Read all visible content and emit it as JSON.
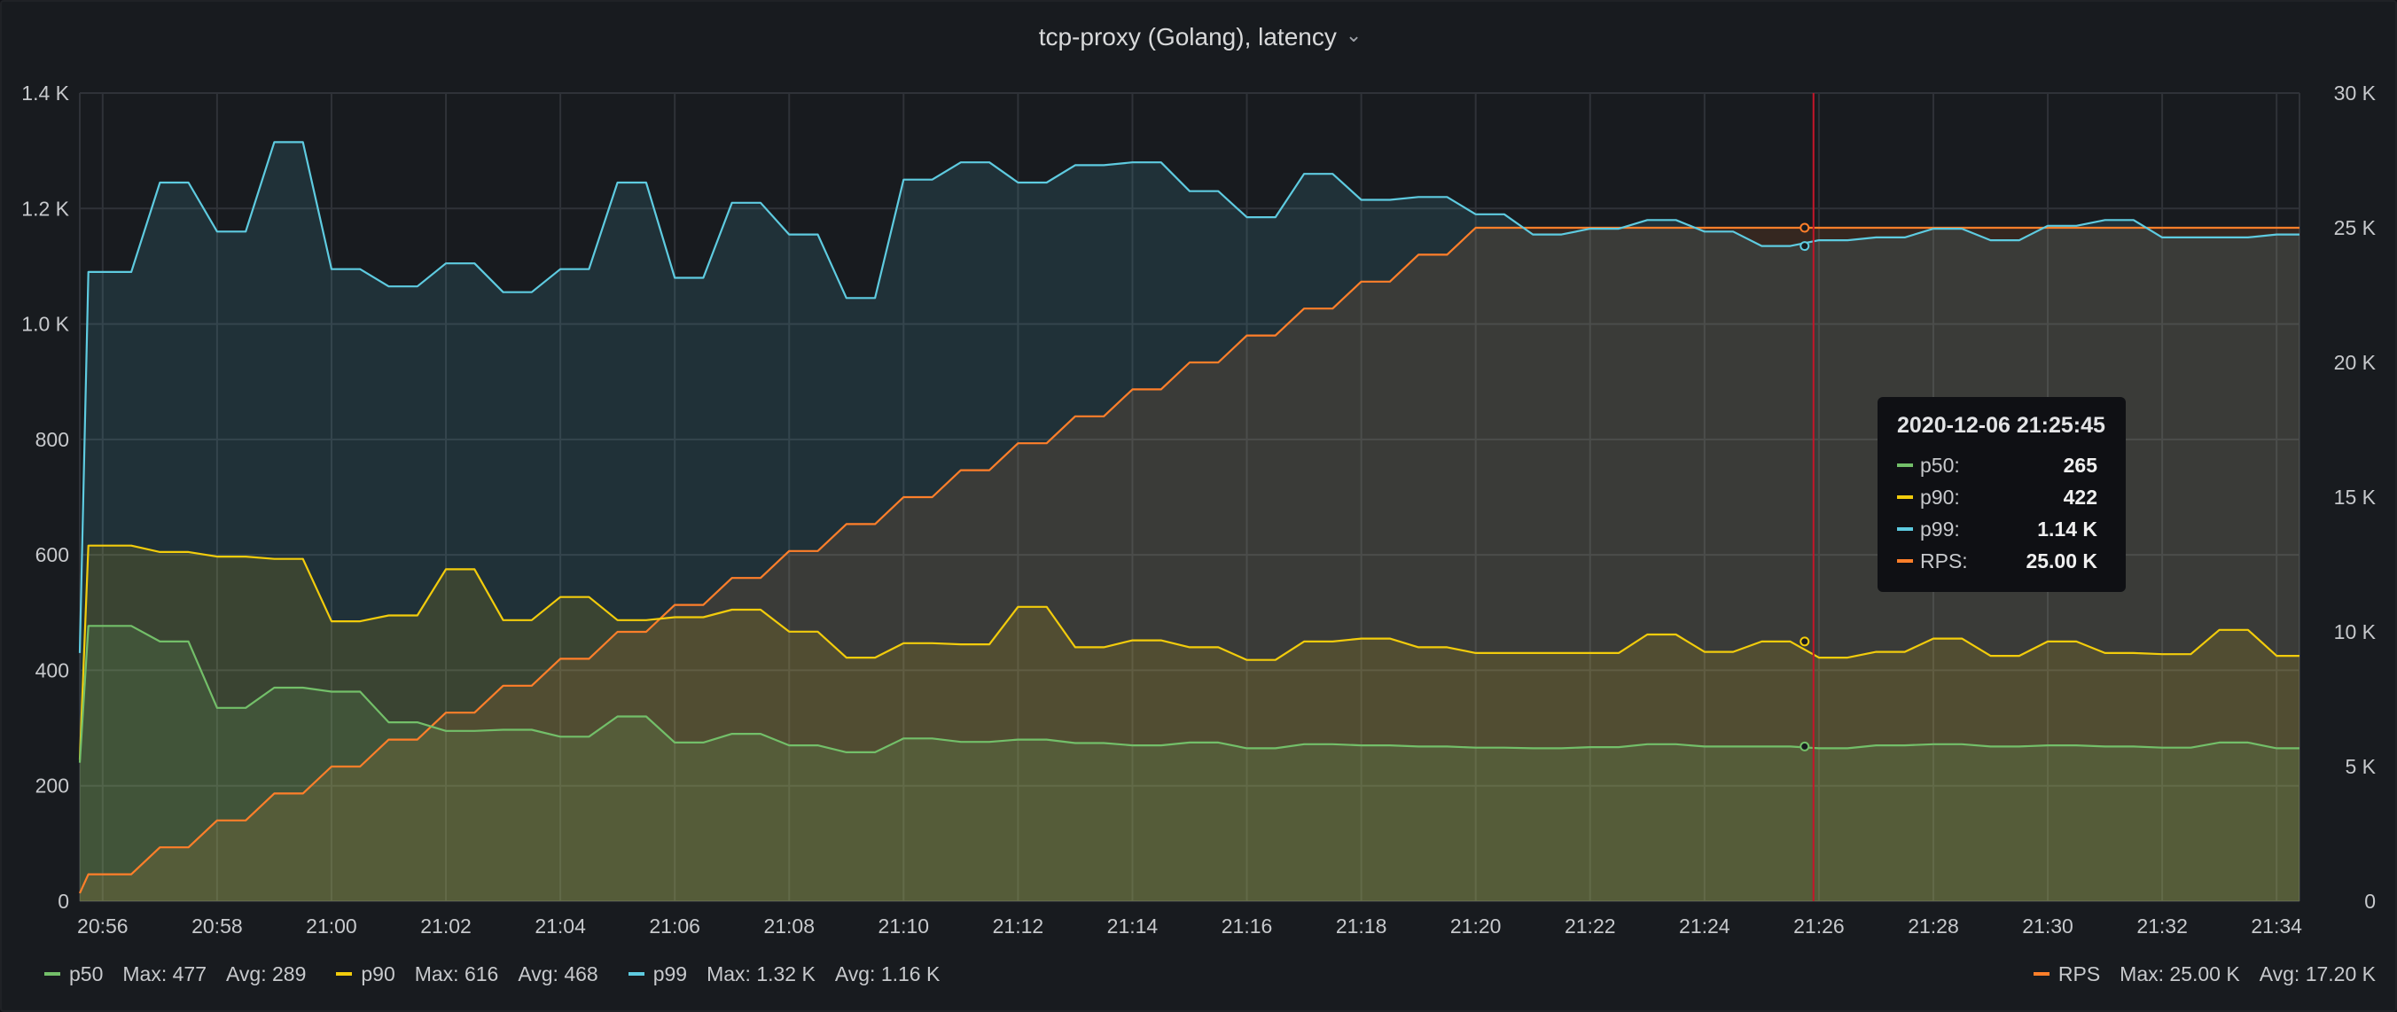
{
  "panel": {
    "title": "tcp-proxy (Golang), latency",
    "icons": {
      "title_dropdown": "chevron-down-icon"
    }
  },
  "colors": {
    "p50": "#73bf69",
    "p90": "#f2cc0c",
    "p99": "#5ecbe0",
    "rps": "#ff7f2a",
    "crosshair": "#c4162a",
    "grid": "#2f3238"
  },
  "tooltip": {
    "time": "2020-12-06 21:25:45",
    "rows": [
      {
        "name": "p50:",
        "value": "265"
      },
      {
        "name": "p90:",
        "value": "422"
      },
      {
        "name": "p99:",
        "value": "1.14 K"
      },
      {
        "name": "RPS:",
        "value": "25.00 K"
      }
    ]
  },
  "legend": {
    "left": [
      {
        "name": "p50",
        "max": "Max: 477",
        "avg": "Avg: 289"
      },
      {
        "name": "p90",
        "max": "Max: 616",
        "avg": "Avg: 468"
      },
      {
        "name": "p99",
        "max": "Max: 1.32 K",
        "avg": "Avg: 1.16 K"
      }
    ],
    "right": [
      {
        "name": "RPS",
        "max": "Max: 25.00 K",
        "avg": "Avg: 17.20 K"
      }
    ]
  },
  "chart_data": {
    "type": "area",
    "title": "tcp-proxy (Golang), latency",
    "x_range_minutes": [
      55.6,
      94.4
    ],
    "hover_x": 85.75,
    "x_tick_labels": [
      "20:56",
      "20:58",
      "21:00",
      "21:02",
      "21:04",
      "21:06",
      "21:08",
      "21:10",
      "21:12",
      "21:14",
      "21:16",
      "21:18",
      "21:20",
      "21:22",
      "21:24",
      "21:26",
      "21:28",
      "21:30",
      "21:32",
      "21:34"
    ],
    "x_tick_minutes": [
      56,
      58,
      60,
      62,
      64,
      66,
      68,
      70,
      72,
      74,
      76,
      78,
      80,
      82,
      84,
      86,
      88,
      90,
      92,
      94
    ],
    "y_left": {
      "min": 0,
      "max": 1400,
      "ticks": [
        0,
        200,
        400,
        600,
        800,
        1000,
        1200,
        1400
      ],
      "tick_labels": [
        "0",
        "200",
        "400",
        "600",
        "800",
        "1.0 K",
        "1.2 K",
        "1.4 K"
      ]
    },
    "y_right": {
      "min": 0,
      "max": 30000,
      "ticks": [
        0,
        5000,
        10000,
        15000,
        20000,
        25000,
        30000
      ],
      "tick_labels": [
        "0",
        "5 K",
        "10 K",
        "15 K",
        "20 K",
        "25 K",
        "30 K"
      ]
    },
    "grid": true,
    "legend_position": "bottom",
    "series": [
      {
        "name": "p50",
        "axis": "left",
        "fill": true,
        "x": [
          55.6,
          55.75,
          56.5,
          57.0,
          57.5,
          58.0,
          58.5,
          59.0,
          59.5,
          60.0,
          60.5,
          61.0,
          61.5,
          62.0,
          62.5,
          63.0,
          63.5,
          64.0,
          64.5,
          65.0,
          65.5,
          66.0,
          66.5,
          67.0,
          67.5,
          68.0,
          68.5,
          69.0,
          69.5,
          70.0,
          70.5,
          71.0,
          71.5,
          72.0,
          72.5,
          73.0,
          73.5,
          74.0,
          74.5,
          75.0,
          75.5,
          76.0,
          76.5,
          77.0,
          77.5,
          78.0,
          78.5,
          79.0,
          79.5,
          80.0,
          80.5,
          81.0,
          81.5,
          82.0,
          82.5,
          83.0,
          83.5,
          84.0,
          84.5,
          85.0,
          85.5,
          86.0,
          86.5,
          87.0,
          87.5,
          88.0,
          88.5,
          89.0,
          89.5,
          90.0,
          90.5,
          91.0,
          91.5,
          92.0,
          92.5,
          93.0,
          93.5,
          94.0,
          94.4
        ],
        "y": [
          240,
          477,
          477,
          450,
          450,
          335,
          335,
          370,
          370,
          363,
          363,
          310,
          310,
          295,
          295,
          297,
          297,
          285,
          285,
          320,
          320,
          275,
          275,
          290,
          290,
          270,
          270,
          258,
          258,
          282,
          282,
          276,
          276,
          280,
          280,
          274,
          274,
          270,
          270,
          275,
          275,
          265,
          265,
          272,
          272,
          270,
          270,
          268,
          268,
          266,
          266,
          265,
          265,
          267,
          267,
          272,
          272,
          268,
          268,
          268,
          268,
          265,
          265,
          270,
          270,
          272,
          272,
          268,
          268,
          270,
          270,
          268,
          268,
          266,
          266,
          275,
          275,
          265,
          265
        ]
      },
      {
        "name": "p90",
        "axis": "left",
        "fill": true,
        "x": [
          55.6,
          55.75,
          56.5,
          57.0,
          57.5,
          58.0,
          58.5,
          59.0,
          59.5,
          60.0,
          60.5,
          61.0,
          61.5,
          62.0,
          62.5,
          63.0,
          63.5,
          64.0,
          64.5,
          65.0,
          65.5,
          66.0,
          66.5,
          67.0,
          67.5,
          68.0,
          68.5,
          69.0,
          69.5,
          70.0,
          70.5,
          71.0,
          71.5,
          72.0,
          72.5,
          73.0,
          73.5,
          74.0,
          74.5,
          75.0,
          75.5,
          76.0,
          76.5,
          77.0,
          77.5,
          78.0,
          78.5,
          79.0,
          79.5,
          80.0,
          80.5,
          81.0,
          81.5,
          82.0,
          82.5,
          83.0,
          83.5,
          84.0,
          84.5,
          85.0,
          85.5,
          86.0,
          86.5,
          87.0,
          87.5,
          88.0,
          88.5,
          89.0,
          89.5,
          90.0,
          90.5,
          91.0,
          91.5,
          92.0,
          92.5,
          93.0,
          93.5,
          94.0,
          94.4
        ],
        "y": [
          245,
          616,
          616,
          605,
          605,
          597,
          597,
          593,
          593,
          485,
          485,
          495,
          495,
          575,
          575,
          487,
          487,
          527,
          527,
          487,
          487,
          492,
          492,
          505,
          505,
          467,
          467,
          422,
          422,
          447,
          447,
          445,
          445,
          510,
          510,
          440,
          440,
          452,
          452,
          440,
          440,
          418,
          418,
          450,
          450,
          455,
          455,
          440,
          440,
          430,
          430,
          430,
          430,
          430,
          430,
          462,
          462,
          432,
          432,
          450,
          450,
          422,
          422,
          432,
          432,
          455,
          455,
          425,
          425,
          450,
          450,
          430,
          430,
          428,
          428,
          470,
          470,
          425,
          425
        ]
      },
      {
        "name": "p99",
        "axis": "left",
        "fill": true,
        "x": [
          55.6,
          55.75,
          56.5,
          57.0,
          57.5,
          58.0,
          58.5,
          59.0,
          59.5,
          60.0,
          60.5,
          61.0,
          61.5,
          62.0,
          62.5,
          63.0,
          63.5,
          64.0,
          64.5,
          65.0,
          65.5,
          66.0,
          66.5,
          67.0,
          67.5,
          68.0,
          68.5,
          69.0,
          69.5,
          70.0,
          70.5,
          71.0,
          71.5,
          72.0,
          72.5,
          73.0,
          73.5,
          74.0,
          74.5,
          75.0,
          75.5,
          76.0,
          76.5,
          77.0,
          77.5,
          78.0,
          78.5,
          79.0,
          79.5,
          80.0,
          80.5,
          81.0,
          81.5,
          82.0,
          82.5,
          83.0,
          83.5,
          84.0,
          84.5,
          85.0,
          85.5,
          86.0,
          86.5,
          87.0,
          87.5,
          88.0,
          88.5,
          89.0,
          89.5,
          90.0,
          90.5,
          91.0,
          91.5,
          92.0,
          92.5,
          93.0,
          93.5,
          94.0,
          94.4
        ],
        "y": [
          430,
          1090,
          1090,
          1245,
          1245,
          1160,
          1160,
          1315,
          1315,
          1095,
          1095,
          1065,
          1065,
          1105,
          1105,
          1055,
          1055,
          1095,
          1095,
          1245,
          1245,
          1080,
          1080,
          1210,
          1210,
          1155,
          1155,
          1045,
          1045,
          1250,
          1250,
          1280,
          1280,
          1245,
          1245,
          1275,
          1275,
          1280,
          1280,
          1230,
          1230,
          1185,
          1185,
          1260,
          1260,
          1215,
          1215,
          1220,
          1220,
          1190,
          1190,
          1155,
          1155,
          1165,
          1165,
          1180,
          1180,
          1160,
          1160,
          1135,
          1135,
          1145,
          1145,
          1150,
          1150,
          1165,
          1165,
          1145,
          1145,
          1170,
          1170,
          1180,
          1180,
          1150,
          1150,
          1150,
          1150,
          1155,
          1155
        ]
      },
      {
        "name": "RPS",
        "axis": "right",
        "fill": true,
        "x": [
          55.6,
          55.75,
          56.5,
          57.0,
          57.5,
          58.0,
          58.5,
          59.0,
          59.5,
          60.0,
          60.5,
          61.0,
          61.5,
          62.0,
          62.5,
          63.0,
          63.5,
          64.0,
          64.5,
          65.0,
          65.5,
          66.0,
          66.5,
          67.0,
          67.5,
          68.0,
          68.5,
          69.0,
          69.5,
          70.0,
          70.5,
          71.0,
          71.5,
          72.0,
          72.5,
          73.0,
          73.5,
          74.0,
          74.5,
          75.0,
          75.5,
          76.0,
          76.5,
          77.0,
          77.5,
          78.0,
          78.5,
          79.0,
          79.5,
          80.0,
          94.4
        ],
        "y": [
          300,
          1000,
          1000,
          2000,
          2000,
          3000,
          3000,
          4000,
          4000,
          5000,
          5000,
          6000,
          6000,
          7000,
          7000,
          8000,
          8000,
          9000,
          9000,
          10000,
          10000,
          11000,
          11000,
          12000,
          12000,
          13000,
          13000,
          14000,
          14000,
          15000,
          15000,
          16000,
          16000,
          17000,
          17000,
          18000,
          18000,
          19000,
          19000,
          20000,
          20000,
          21000,
          21000,
          22000,
          22000,
          23000,
          23000,
          24000,
          24000,
          25000,
          25000
        ]
      }
    ]
  }
}
